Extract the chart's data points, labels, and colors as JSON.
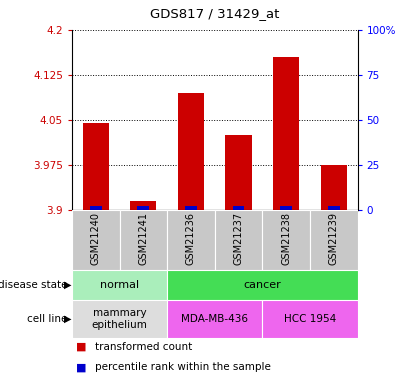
{
  "title": "GDS817 / 31429_at",
  "samples": [
    "GSM21240",
    "GSM21241",
    "GSM21236",
    "GSM21237",
    "GSM21238",
    "GSM21239"
  ],
  "red_values": [
    4.045,
    3.915,
    4.095,
    4.025,
    4.155,
    3.975
  ],
  "ymin": 3.9,
  "ymax": 4.2,
  "yticks": [
    3.9,
    3.975,
    4.05,
    4.125,
    4.2
  ],
  "ytick_labels": [
    "3.9",
    "3.975",
    "4.05",
    "4.125",
    "4.2"
  ],
  "right_yticks": [
    0,
    25,
    50,
    75,
    100
  ],
  "right_ytick_labels": [
    "0",
    "25",
    "50",
    "75",
    "100%"
  ],
  "bar_color_red": "#cc0000",
  "bar_color_blue": "#0000cc",
  "disease_groups": [
    {
      "label": "normal",
      "samples": [
        0,
        1
      ],
      "color": "#aaeebb"
    },
    {
      "label": "cancer",
      "samples": [
        2,
        3,
        4,
        5
      ],
      "color": "#44dd55"
    }
  ],
  "cell_line_groups": [
    {
      "label": "mammary\nepithelium",
      "samples": [
        0,
        1
      ],
      "color": "#dddddd"
    },
    {
      "label": "MDA-MB-436",
      "samples": [
        2,
        3
      ],
      "color": "#ee66ee"
    },
    {
      "label": "HCC 1954",
      "samples": [
        4,
        5
      ],
      "color": "#ee66ee"
    }
  ],
  "legend_items": [
    {
      "label": "transformed count",
      "color": "#cc0000"
    },
    {
      "label": "percentile rank within the sample",
      "color": "#0000cc"
    }
  ]
}
